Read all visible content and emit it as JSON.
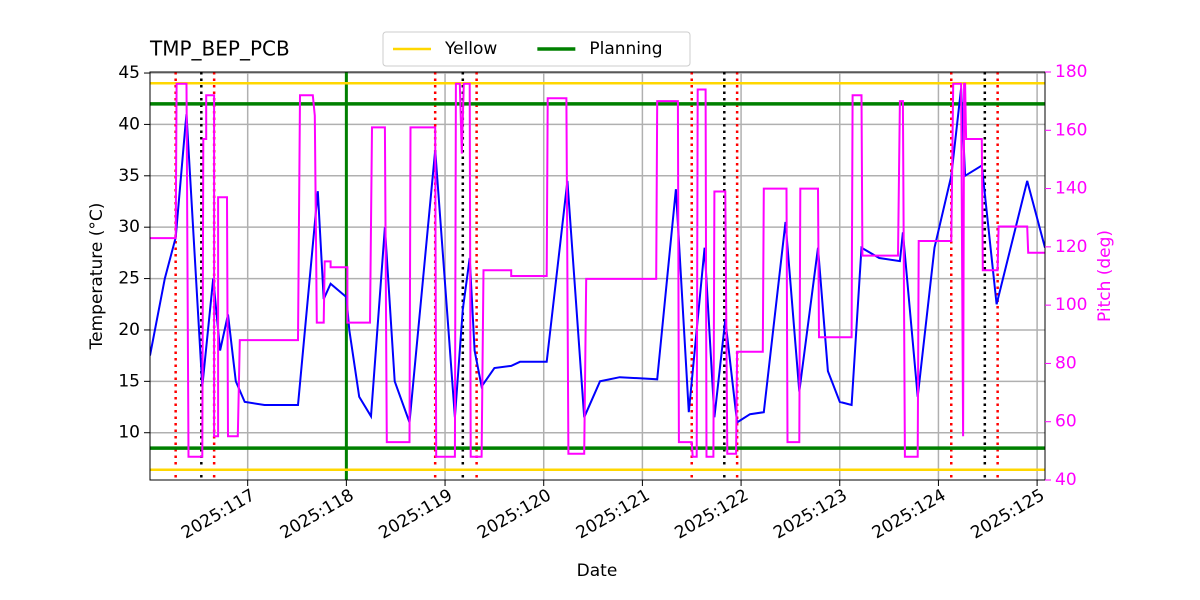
{
  "chart_data": {
    "type": "line",
    "title": "TMP_BEP_PCB",
    "xlabel": "Date",
    "ylabel": "Temperature (°C)",
    "y2label": "Pitch (deg)",
    "xlim": [
      116.01,
      125.08
    ],
    "xticks": [
      {
        "value": 117,
        "label": "2025:117"
      },
      {
        "value": 118,
        "label": "2025:118"
      },
      {
        "value": 119,
        "label": "2025:119"
      },
      {
        "value": 120,
        "label": "2025:120"
      },
      {
        "value": 121,
        "label": "2025:121"
      },
      {
        "value": 122,
        "label": "2025:122"
      },
      {
        "value": 123,
        "label": "2025:123"
      },
      {
        "value": 124,
        "label": "2025:124"
      },
      {
        "value": 125,
        "label": "2025:125"
      }
    ],
    "ylim": [
      5.4,
      45.1
    ],
    "yticks": [
      10,
      15,
      20,
      25,
      30,
      35,
      40,
      45
    ],
    "y2lim": [
      40,
      180
    ],
    "y2ticks": [
      40,
      60,
      80,
      100,
      120,
      140,
      160,
      180
    ],
    "y2color": "#ff00ff",
    "grid": true,
    "legend": "upper center",
    "limits": [
      {
        "name": "Yellow",
        "color": "#ffd700",
        "values": [
          44,
          6.4
        ]
      },
      {
        "name": "Planning",
        "color": "#008000",
        "values": [
          42,
          8.5
        ]
      }
    ],
    "vlines": [
      {
        "color": "#008000",
        "dotted": false,
        "values": [
          118
        ]
      },
      {
        "color": "#ff0000",
        "dotted": true,
        "values": [
          116.27,
          116.66,
          118.9,
          119.32,
          121.5,
          121.96,
          124.13,
          124.6
        ]
      },
      {
        "color": "#000000",
        "dotted": true,
        "values": [
          116.53,
          119.18,
          121.83,
          124.47
        ]
      }
    ],
    "series": [
      {
        "color": "#0000ff",
        "axis": "y",
        "x": [
          116.01,
          116.16,
          116.27,
          116.37,
          116.38,
          116.54,
          116.65,
          116.72,
          116.8,
          116.88,
          116.97,
          117.17,
          117.51,
          117.71,
          117.77,
          117.84,
          118.0,
          118.03,
          118.13,
          118.25,
          118.39,
          118.49,
          118.64,
          118.9,
          119.1,
          119.18,
          119.25,
          119.3,
          119.37,
          119.5,
          119.67,
          119.76,
          120.03,
          120.24,
          120.41,
          120.57,
          120.77,
          121.15,
          121.34,
          121.47,
          121.63,
          121.73,
          121.84,
          121.96,
          122.09,
          122.23,
          122.45,
          122.59,
          122.78,
          122.88,
          123.0,
          123.12,
          123.22,
          123.4,
          123.61,
          123.64,
          123.79,
          123.96,
          124.13,
          124.23,
          124.27,
          124.44,
          124.59,
          124.9,
          125.08
        ],
        "values": [
          17.5,
          25,
          29,
          40,
          41,
          14.5,
          25,
          18,
          21.5,
          15,
          13,
          12.7,
          12.7,
          33.5,
          23,
          24.5,
          23.2,
          20,
          13.5,
          11.6,
          30,
          15,
          11,
          37.5,
          11.5,
          22,
          27,
          18,
          14.5,
          16.3,
          16.5,
          16.9,
          16.9,
          34.5,
          11.5,
          15,
          15.4,
          15.2,
          33.7,
          12,
          28,
          11.5,
          21,
          11,
          11.8,
          12,
          30.5,
          14,
          28,
          16,
          13,
          12.7,
          28,
          27,
          26.7,
          29.5,
          13.5,
          28,
          35,
          43.5,
          35,
          36,
          22.5,
          34.5,
          28
        ]
      },
      {
        "color": "#ff00ff",
        "axis": "y2",
        "x": [
          116.01,
          116.27,
          116.28,
          116.38,
          116.4,
          116.54,
          116.55,
          116.58,
          116.58,
          116.66,
          116.66,
          116.7,
          116.7,
          116.79,
          116.8,
          116.9,
          116.92,
          117.51,
          117.53,
          117.66,
          117.68,
          117.7,
          117.77,
          117.78,
          117.84,
          117.84,
          118.01,
          118.01,
          118.24,
          118.26,
          118.39,
          118.41,
          118.64,
          118.65,
          118.9,
          118.91,
          119.1,
          119.11,
          119.15,
          119.17,
          119.19,
          119.25,
          119.26,
          119.37,
          119.39,
          119.67,
          119.67,
          120.03,
          120.04,
          120.23,
          120.25,
          120.41,
          120.43,
          121.14,
          121.15,
          121.36,
          121.37,
          121.5,
          121.51,
          121.55,
          121.56,
          121.64,
          121.65,
          121.72,
          121.73,
          121.84,
          121.86,
          121.95,
          121.96,
          122.22,
          122.23,
          122.46,
          122.47,
          122.59,
          122.6,
          122.78,
          122.79,
          123.12,
          123.13,
          123.22,
          123.23,
          123.59,
          123.61,
          123.64,
          123.66,
          123.79,
          123.8,
          124.13,
          124.15,
          124.23,
          124.25,
          124.26,
          124.27,
          124.28,
          124.44,
          124.45,
          124.6,
          124.61,
          124.9,
          124.91,
          125.08
        ],
        "values": [
          123,
          123,
          176,
          176,
          48,
          48,
          157,
          157,
          172,
          172,
          55,
          55,
          137,
          137,
          55,
          55,
          88,
          88,
          172,
          172,
          165,
          94,
          94,
          115,
          115,
          113,
          113,
          94,
          94,
          161,
          161,
          53,
          53,
          161,
          161,
          48,
          48,
          176,
          176,
          152,
          176,
          176,
          48,
          48,
          112,
          112,
          110,
          110,
          171,
          171,
          49,
          49,
          109,
          109,
          170,
          170,
          53,
          53,
          48,
          48,
          174,
          174,
          48,
          48,
          139,
          139,
          49,
          49,
          84,
          84,
          140,
          140,
          53,
          53,
          140,
          140,
          89,
          89,
          172,
          172,
          117,
          117,
          170,
          170,
          48,
          48,
          122,
          122,
          176,
          176,
          55,
          176,
          176,
          157,
          157,
          112,
          112,
          127,
          127,
          118,
          118
        ]
      }
    ]
  }
}
